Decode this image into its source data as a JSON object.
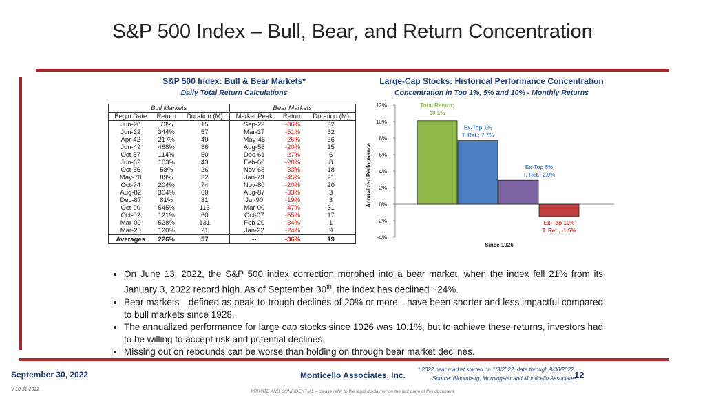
{
  "title": "S&P 500 Index – Bull, Bear, and Return Concentration",
  "table": {
    "title": "S&P 500 Index: Bull & Bear Markets*",
    "subtitle": "Daily Total Return Calculations",
    "bull_header": "Bull Markets",
    "bear_header": "Bear Markets",
    "columns": [
      "Begin Date",
      "Return",
      "Duration (M)",
      "Market Peak",
      "Return",
      "Duration (M)"
    ],
    "rows": [
      [
        "Jun-28",
        "73%",
        "15",
        "Sep-29",
        "-86%",
        "32"
      ],
      [
        "Jun-32",
        "344%",
        "57",
        "Mar-37",
        "-51%",
        "62"
      ],
      [
        "Apr-42",
        "217%",
        "49",
        "May-46",
        "-25%",
        "36"
      ],
      [
        "Jun-49",
        "488%",
        "86",
        "Aug-56",
        "-20%",
        "15"
      ],
      [
        "Oct-57",
        "114%",
        "50",
        "Dec-61",
        "-27%",
        "6"
      ],
      [
        "Jun-62",
        "103%",
        "43",
        "Feb-66",
        "-20%",
        "8"
      ],
      [
        "Oct-66",
        "58%",
        "26",
        "Nov-68",
        "-33%",
        "18"
      ],
      [
        "May-70",
        "89%",
        "32",
        "Jan-73",
        "-45%",
        "21"
      ],
      [
        "Oct-74",
        "204%",
        "74",
        "Nov-80",
        "-20%",
        "20"
      ],
      [
        "Aug-82",
        "304%",
        "60",
        "Aug-87",
        "-33%",
        "3"
      ],
      [
        "Dec-87",
        "81%",
        "31",
        "Jul-90",
        "-19%",
        "3"
      ],
      [
        "Oct-90",
        "545%",
        "113",
        "Mar-00",
        "-47%",
        "31"
      ],
      [
        "Oct-02",
        "121%",
        "60",
        "Oct-07",
        "-55%",
        "17"
      ],
      [
        "Mar-09",
        "528%",
        "131",
        "Feb-20",
        "-34%",
        "1"
      ],
      [
        "Mar-20",
        "120%",
        "21",
        "Jan-22",
        "-24%",
        "9"
      ]
    ],
    "averages": [
      "Averages",
      "226%",
      "57",
      "--",
      "-36%",
      "19"
    ]
  },
  "chart_data": {
    "type": "bar",
    "title": "Large-Cap Stocks: Historical Performance Concentration",
    "subtitle": "Concentration in Top 1%, 5% and 10% - Monthly Returns",
    "ylabel": "Annualized Performance",
    "xlabel": "Since 1926",
    "ylim": [
      -4,
      12
    ],
    "yticks": [
      "-4%",
      "-2%",
      "0%",
      "2%",
      "4%",
      "6%",
      "8%",
      "10%",
      "12%"
    ],
    "grid": false,
    "categories": [
      "Total Return",
      "Ex-Top 1%",
      "Ex-Top 5%",
      "Ex-Top 10%"
    ],
    "values": [
      10.1,
      7.7,
      2.9,
      -1.5
    ],
    "colors": [
      "#8fb84a",
      "#4b7fc1",
      "#7b63a4",
      "#c0403d"
    ],
    "label_colors": [
      "#8fb84a",
      "#4b7fc1",
      "#4b7fc1",
      "#c0403d"
    ],
    "labels_line1": [
      "Total Return;",
      "Ex-Top 1%",
      "Ex-Top 5%",
      "Ex-Top 10%"
    ],
    "labels_line2": [
      "10.1%",
      "T. Ret.; 7.7%",
      "T. Ret.; 2.9%",
      "T. Ret., -1.5%"
    ]
  },
  "bullets": {
    "b1_part1": "On June 13, 2022, the S&P 500 index correction morphed into a bear market, when the index fell 21% from its January 3, 2022 record high.  As of September 30",
    "b1_sup": "th",
    "b1_part2": ", the index has declined ~24%.",
    "b2": "Bear markets—defined as peak-to-trough declines of 20% or more—have been shorter and less impactful compared to bull markets since 1928.",
    "b3": "The annualized performance for large cap stocks since 1926 was 10.1%, but to achieve these returns, investors had to be willing to accept risk and potential declines.",
    "b4": "Missing out on rebounds can be worse than holding on through bear market declines."
  },
  "footer": {
    "date": "September 30, 2022",
    "company": "Monticello Associates, Inc.",
    "footnote": "* 2022 bear market started on 1/3/2022, data through 9/30/2022",
    "source": "Source: Bloomberg, Morningstar and Monticello Associates",
    "page": "12",
    "version": "V.10.31.2022",
    "confidential": "PRIVATE AND CONFIDENTIAL – please refer to the legal disclaimer on the last page of this document"
  }
}
